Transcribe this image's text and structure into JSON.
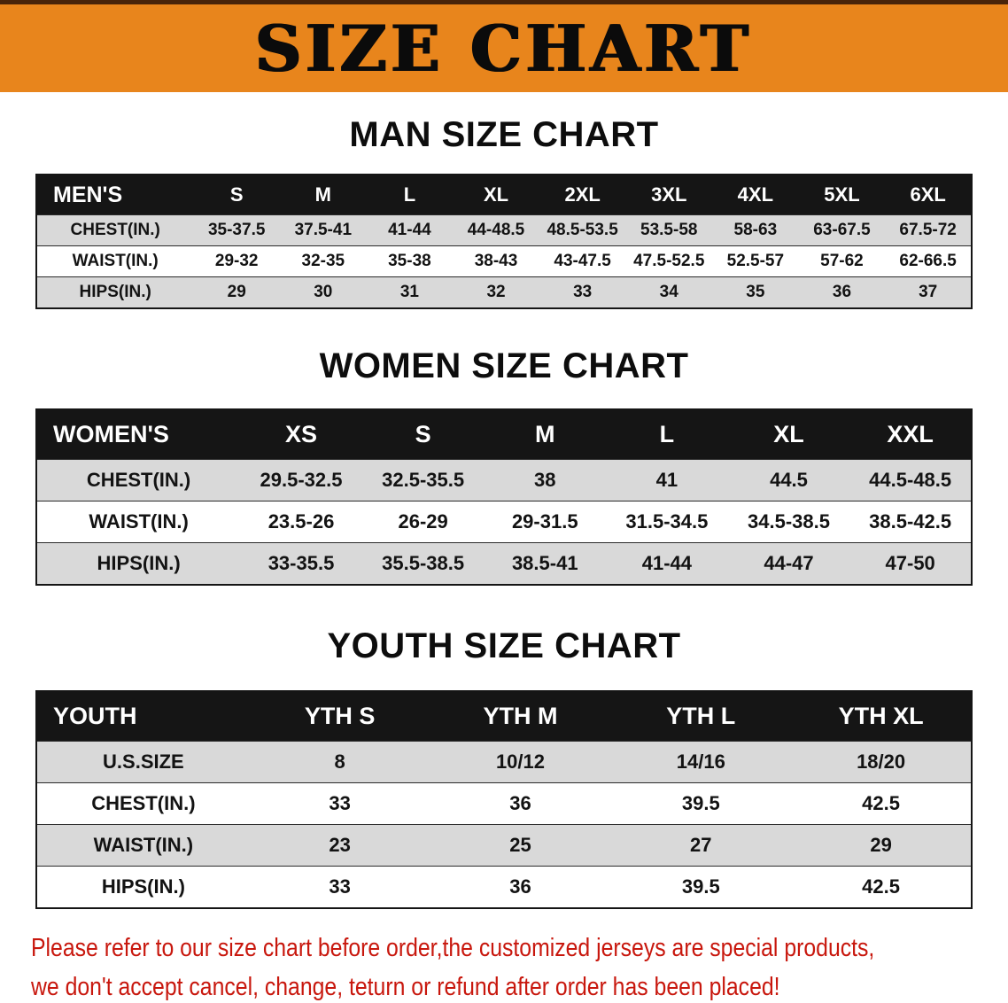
{
  "banner": {
    "title": "SIZE CHART",
    "bg_color": "#e8851c",
    "title_color": "#0b0b0b"
  },
  "sections": [
    {
      "heading": "MAN SIZE CHART",
      "table": {
        "header": [
          "MEN'S",
          "S",
          "M",
          "L",
          "XL",
          "2XL",
          "3XL",
          "4XL",
          "5XL",
          "6XL"
        ],
        "rows": [
          [
            "CHEST(IN.)",
            "35-37.5",
            "37.5-41",
            "41-44",
            "44-48.5",
            "48.5-53.5",
            "53.5-58",
            "58-63",
            "63-67.5",
            "67.5-72"
          ],
          [
            "WAIST(IN.)",
            "29-32",
            "32-35",
            "35-38",
            "38-43",
            "43-47.5",
            "47.5-52.5",
            "52.5-57",
            "57-62",
            "62-66.5"
          ],
          [
            "HIPS(IN.)",
            "29",
            "30",
            "31",
            "32",
            "33",
            "34",
            "35",
            "36",
            "37"
          ]
        ]
      }
    },
    {
      "heading": "WOMEN SIZE CHART",
      "table": {
        "header": [
          "WOMEN'S",
          "XS",
          "S",
          "M",
          "L",
          "XL",
          "XXL"
        ],
        "rows": [
          [
            "CHEST(IN.)",
            "29.5-32.5",
            "32.5-35.5",
            "38",
            "41",
            "44.5",
            "44.5-48.5"
          ],
          [
            "WAIST(IN.)",
            "23.5-26",
            "26-29",
            "29-31.5",
            "31.5-34.5",
            "34.5-38.5",
            "38.5-42.5"
          ],
          [
            "HIPS(IN.)",
            "33-35.5",
            "35.5-38.5",
            "38.5-41",
            "41-44",
            "44-47",
            "47-50"
          ]
        ]
      }
    },
    {
      "heading": "YOUTH SIZE CHART",
      "table": {
        "header": [
          "YOUTH",
          "YTH S",
          "YTH M",
          "YTH L",
          "YTH XL"
        ],
        "rows": [
          [
            "U.S.SIZE",
            "8",
            "10/12",
            "14/16",
            "18/20"
          ],
          [
            "CHEST(IN.)",
            "33",
            "36",
            "39.5",
            "42.5"
          ],
          [
            "WAIST(IN.)",
            "23",
            "25",
            "27",
            "29"
          ],
          [
            "HIPS(IN.)",
            "33",
            "36",
            "39.5",
            "42.5"
          ]
        ]
      }
    }
  ],
  "disclaimer": {
    "line1": "Please refer to our size chart before order,the customized jerseys are special products,",
    "line2": "we don't accept cancel, change, teturn or refund after order has been placed!",
    "text_color": "#c8170d"
  },
  "colors": {
    "table_header_bg": "#151515",
    "row_stripe": "#d9d9d9",
    "banner_orange": "#e8851c"
  }
}
